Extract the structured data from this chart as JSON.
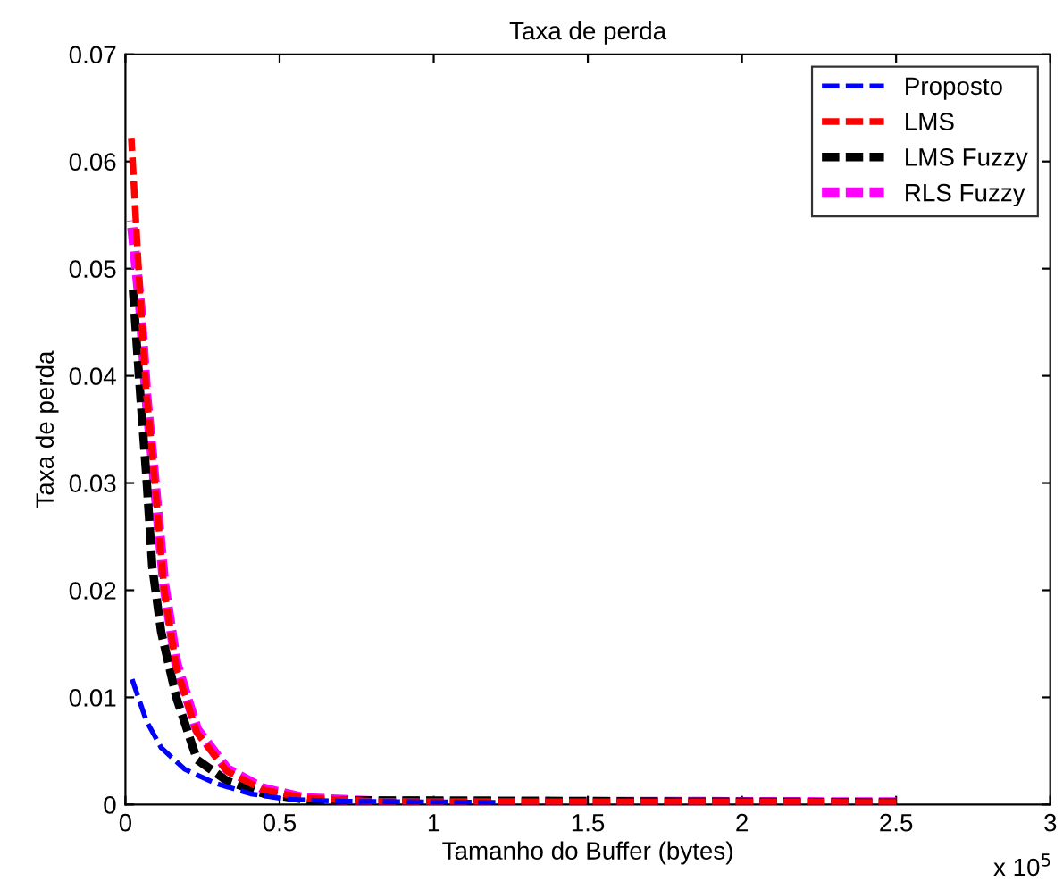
{
  "chart_data": {
    "type": "line",
    "title": "Taxa de perda",
    "xlabel": "Tamanho do Buffer (bytes)",
    "ylabel": "Taxa de perda",
    "annotations": [
      "x 10$^{5}$"
    ],
    "xlim": [
      0,
      3
    ],
    "ylim": [
      0,
      0.07
    ],
    "xticks": [
      0,
      0.5,
      1,
      1.5,
      2,
      2.5,
      3
    ],
    "yticks": [
      0,
      0.01,
      0.02,
      0.03,
      0.04,
      0.05,
      0.06,
      0.07
    ],
    "grid": false,
    "legend": "top right",
    "line_style": "dashed",
    "marker": "none",
    "series": [
      {
        "name": "Proposto",
        "color": "#0000ff",
        "x": [
          0.019,
          0.068,
          0.116,
          0.192,
          0.29,
          0.407,
          0.52,
          0.7,
          1.2
        ],
        "values": [
          0.0119,
          0.0078,
          0.0053,
          0.0033,
          0.002,
          0.001,
          0.0005,
          0.0003,
          0.0002
        ]
      },
      {
        "name": "LMS",
        "color": "#ff0000",
        "x": [
          0.019,
          0.048,
          0.068,
          0.087,
          0.126,
          0.165,
          0.232,
          0.33,
          0.445,
          0.58,
          0.8,
          2.5
        ],
        "values": [
          0.0622,
          0.0472,
          0.0383,
          0.0328,
          0.02,
          0.0128,
          0.0067,
          0.0031,
          0.0014,
          0.0006,
          0.0003,
          0.0002
        ]
      },
      {
        "name": "LMS Fuzzy",
        "color": "#000000",
        "x": [
          0.023,
          0.048,
          0.068,
          0.087,
          0.116,
          0.165,
          0.232,
          0.33,
          0.45,
          0.6,
          2.5
        ],
        "values": [
          0.0486,
          0.0383,
          0.0306,
          0.0222,
          0.0161,
          0.01,
          0.0042,
          0.0022,
          0.001,
          0.0004,
          0.0002
        ]
      },
      {
        "name": "RLS Fuzzy",
        "color": "#ff00ff",
        "x": [
          0.02,
          0.048,
          0.068,
          0.087,
          0.126,
          0.165,
          0.232,
          0.33,
          0.445,
          0.58,
          0.8,
          2.5
        ],
        "values": [
          0.0545,
          0.0465,
          0.038,
          0.0325,
          0.0205,
          0.0132,
          0.007,
          0.0033,
          0.0015,
          0.0006,
          0.0003,
          0.0002
        ]
      }
    ]
  }
}
